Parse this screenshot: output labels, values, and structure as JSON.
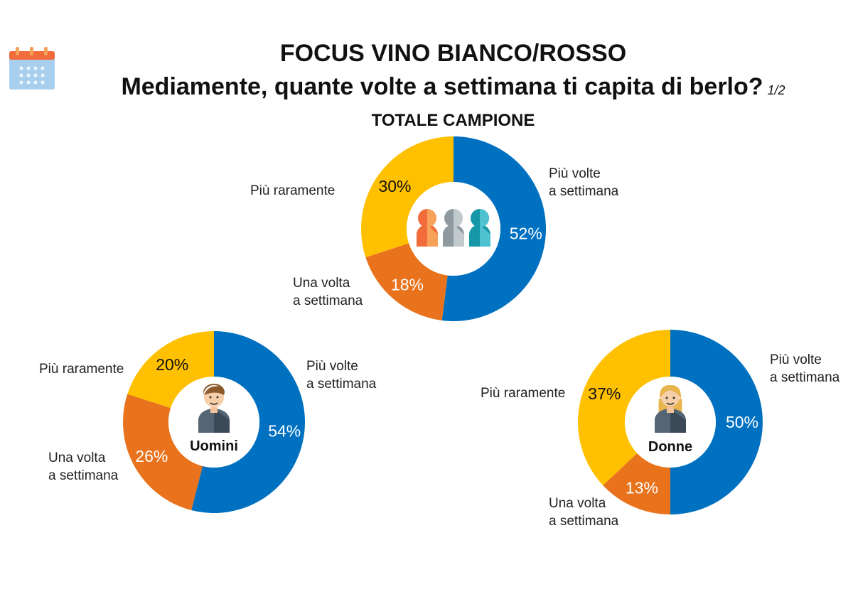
{
  "header": {
    "title": "FOCUS VINO BIANCO/ROSSO",
    "question": "Mediamente, quante volte a settimana ti capita di berlo?",
    "page": "1/2",
    "section": "TOTALE CAMPIONE"
  },
  "colors": {
    "piu_volte": "#0070C0",
    "una_volta": "#E8731C",
    "piu_raramente": "#FFC000"
  },
  "icons": [
    "calendar-icon",
    "people-group-icon",
    "man-avatar-icon",
    "woman-avatar-icon"
  ],
  "chart_data": [
    {
      "type": "pie",
      "name": "TOTALE CAMPIONE",
      "categories": [
        "Più volte a settimana",
        "Una volta a settimana",
        "Più raramente"
      ],
      "values": [
        52,
        18,
        30
      ],
      "labels": [
        "52%",
        "18%",
        "30%"
      ]
    },
    {
      "type": "pie",
      "name": "Uomini",
      "categories": [
        "Più volte a settimana",
        "Una volta a settimana",
        "Più raramente"
      ],
      "values": [
        54,
        26,
        20
      ],
      "labels": [
        "54%",
        "26%",
        "20%"
      ]
    },
    {
      "type": "pie",
      "name": "Donne",
      "categories": [
        "Più volte a settimana",
        "Una volta a settimana",
        "Più raramente"
      ],
      "values": [
        50,
        13,
        37
      ],
      "labels": [
        "50%",
        "13%",
        "37%"
      ]
    }
  ],
  "legend": {
    "piu_volte": [
      "Più volte",
      "a settimana"
    ],
    "una_volta": [
      "Una volta",
      "a settimana"
    ],
    "piu_raramente": "Più raramente"
  }
}
